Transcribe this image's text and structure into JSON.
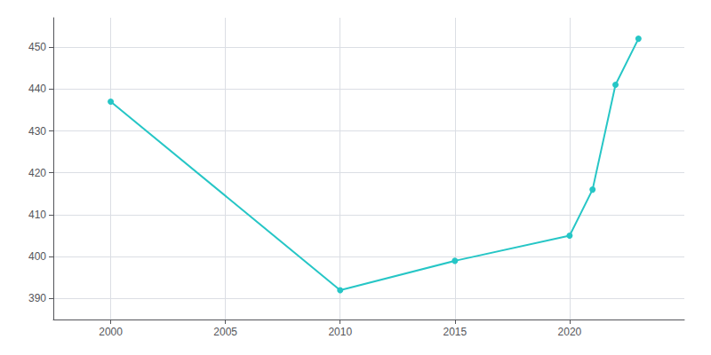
{
  "chart_data": {
    "type": "line",
    "x": [
      2000,
      2010,
      2015,
      2020,
      2021,
      2022,
      2023
    ],
    "values": [
      437,
      392,
      399,
      405,
      416,
      441,
      452
    ],
    "color": "#26c6c6",
    "marker": "circle",
    "xlim": [
      1997.5,
      2025
    ],
    "ylim": [
      385,
      457
    ],
    "xticks": [
      2000,
      2005,
      2010,
      2015,
      2020
    ],
    "yticks": [
      390,
      400,
      410,
      420,
      430,
      440,
      450
    ],
    "grid": true
  }
}
